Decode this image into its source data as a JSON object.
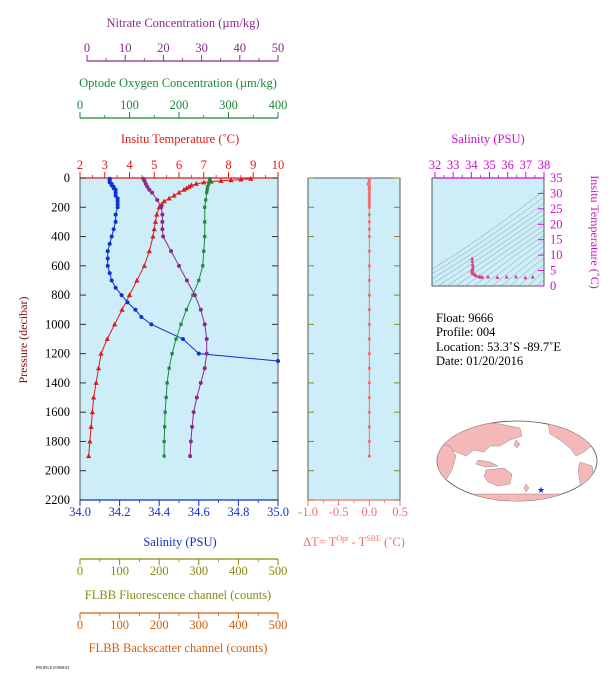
{
  "colors": {
    "nitrate": "#8b2a8b",
    "oxygen": "#1a8a3a",
    "temperature": "#e01a1a",
    "salinity": "#1030d0",
    "fluorescence": "#8a8a10",
    "backscatter": "#d06010",
    "delta_t": "#f07070",
    "ts_axis": "#cc10cc",
    "panel_bg": "#cdeef8",
    "land": "#f4b8b8",
    "ocean": "#ffffff"
  },
  "axes": {
    "nitrate": {
      "label": "Nitrate Concentration (µm/kg)",
      "ticks": [
        "0",
        "10",
        "20",
        "30",
        "40",
        "50"
      ]
    },
    "oxygen": {
      "label": "Optode Oxygen Concentration (µm/kg)",
      "ticks": [
        "0",
        "100",
        "200",
        "300",
        "400"
      ]
    },
    "temperature": {
      "label": "Insitu Temperature (˚C)",
      "ticks": [
        "2",
        "3",
        "4",
        "5",
        "6",
        "7",
        "8",
        "9",
        "10"
      ]
    },
    "pressure": {
      "label": "Pressure (decibar)",
      "ticks": [
        "0",
        "200",
        "400",
        "600",
        "800",
        "1000",
        "1200",
        "1400",
        "1600",
        "1800",
        "2000",
        "2200"
      ]
    },
    "salinity": {
      "label": "Salinity (PSU)",
      "ticks": [
        "34.0",
        "34.2",
        "34.4",
        "34.6",
        "34.8",
        "35.0"
      ]
    },
    "delta_t": {
      "label_main": "ΔT= T",
      "sup1": "Opt",
      "label_mid": " - T",
      "sup2": "SBE",
      "label_end": " (˚C)",
      "ticks": [
        "-1.0",
        "-0.5",
        "0.0",
        "0.5"
      ]
    },
    "fluorescence": {
      "label": "FLBB Fluorescence channel (counts)",
      "ticks": [
        "0",
        "100",
        "200",
        "300",
        "400",
        "500"
      ]
    },
    "backscatter": {
      "label": "FLBB Backscatter channel (counts)",
      "ticks": [
        "0",
        "100",
        "200",
        "300",
        "400",
        "500"
      ]
    },
    "ts_salinity": {
      "label": "Salinity (PSU)",
      "ticks": [
        "32",
        "33",
        "34",
        "35",
        "36",
        "37",
        "38"
      ]
    },
    "ts_temperature": {
      "label": "Insitu Temperature (˚C)",
      "ticks": [
        "0",
        "5",
        "10",
        "15",
        "20",
        "25",
        "30",
        "35"
      ]
    }
  },
  "info": {
    "float": "Float:  9666",
    "profile": "Profile:  004",
    "location": "Location:  53.3˚S  -89.7˚E",
    "date": "Date:  01/20/2016"
  },
  "footer_text": "PROFILE.FORMAT",
  "chart_data": [
    {
      "type": "line",
      "ylabel": "Pressure (decibar)",
      "ylim": [
        0,
        2200
      ],
      "y_inverted": true,
      "series": [
        {
          "name": "Insitu Temperature",
          "x_axis": "temperature",
          "xlim": [
            2,
            10
          ],
          "color": "#e01a1a",
          "marker": "triangle",
          "pressure": [
            5,
            10,
            15,
            20,
            25,
            30,
            40,
            50,
            60,
            70,
            80,
            100,
            120,
            140,
            160,
            180,
            200,
            250,
            300,
            350,
            400,
            500,
            600,
            700,
            800,
            900,
            1000,
            1100,
            1200,
            1300,
            1400,
            1500,
            1600,
            1700,
            1800,
            1900
          ],
          "values": [
            8.9,
            8.5,
            8.1,
            7.7,
            7.3,
            7.0,
            6.7,
            6.5,
            6.4,
            6.3,
            6.2,
            6.0,
            5.8,
            5.6,
            5.4,
            5.3,
            5.2,
            5.1,
            5.05,
            5.0,
            4.95,
            4.8,
            4.6,
            4.3,
            4.0,
            3.7,
            3.4,
            3.1,
            2.85,
            2.75,
            2.65,
            2.55,
            2.5,
            2.45,
            2.4,
            2.35
          ]
        },
        {
          "name": "Salinity",
          "x_axis": "salinity",
          "xlim": [
            34.0,
            35.0
          ],
          "color": "#1030d0",
          "marker": "circle",
          "pressure": [
            5,
            10,
            20,
            30,
            40,
            50,
            60,
            70,
            80,
            100,
            120,
            140,
            160,
            180,
            200,
            250,
            300,
            350,
            400,
            450,
            500,
            550,
            600,
            650,
            700,
            750,
            800,
            850,
            900,
            950,
            1000,
            1100,
            1200,
            1250
          ],
          "values": [
            34.15,
            34.15,
            34.15,
            34.15,
            34.16,
            34.16,
            34.17,
            34.17,
            34.18,
            34.18,
            34.18,
            34.19,
            34.19,
            34.19,
            34.19,
            34.18,
            34.18,
            34.17,
            34.16,
            34.15,
            34.14,
            34.14,
            34.14,
            34.15,
            34.16,
            34.18,
            34.21,
            34.24,
            34.28,
            34.31,
            34.36,
            34.52,
            34.6,
            35.0
          ]
        },
        {
          "name": "Optode Oxygen Concentration",
          "x_axis": "oxygen",
          "xlim": [
            0,
            400
          ],
          "color": "#1a8a3a",
          "marker": "square",
          "pressure": [
            5,
            20,
            40,
            60,
            80,
            100,
            150,
            200,
            300,
            400,
            500,
            600,
            700,
            800,
            900,
            1000,
            1100,
            1200,
            1300,
            1400,
            1500,
            1600,
            1700,
            1800,
            1900
          ],
          "values": [
            262,
            262,
            260,
            258,
            257,
            256,
            254,
            252,
            252,
            252,
            250,
            248,
            240,
            228,
            215,
            204,
            194,
            186,
            180,
            176,
            174,
            172,
            171,
            170,
            170
          ]
        },
        {
          "name": "Nitrate Concentration",
          "x_axis": "nitrate",
          "xlim": [
            0,
            50
          ],
          "color": "#8b2a8b",
          "marker": "circle",
          "pressure": [
            5,
            20,
            40,
            60,
            80,
            100,
            150,
            200,
            250,
            300,
            350,
            400,
            500,
            600,
            700,
            800,
            900,
            1000,
            1100,
            1200,
            1300,
            1400,
            1500,
            1600,
            1700,
            1800,
            1900
          ],
          "values": [
            16,
            16.3,
            16.6,
            17,
            17.5,
            18.2,
            19.5,
            20.5,
            20.8,
            20.8,
            20.8,
            21,
            23,
            25,
            27,
            29,
            30.5,
            31.5,
            32,
            32,
            31.5,
            30.5,
            29.5,
            28.7,
            28.3,
            28.0,
            27.8
          ]
        }
      ]
    },
    {
      "type": "line",
      "xlabel": "ΔT= T(Opt) - T(SBE) (˚C)",
      "xlim": [
        -1.0,
        0.5
      ],
      "ylim": [
        0,
        2200
      ],
      "y_inverted": true,
      "series": [
        {
          "name": "ΔT",
          "color": "#f07070",
          "pressure": [
            5,
            10,
            20,
            30,
            40,
            50,
            60,
            70,
            80,
            100,
            120,
            140,
            160,
            180,
            200,
            250,
            300,
            350,
            400,
            500,
            600,
            700,
            800,
            900,
            1000,
            1100,
            1200,
            1300,
            1400,
            1500,
            1600,
            1700,
            1800,
            1900
          ],
          "values": [
            0.0,
            0.0,
            0.0,
            0.0,
            -0.02,
            0.0,
            0.0,
            0.0,
            0.0,
            0.0,
            0.0,
            0.0,
            0.0,
            0.0,
            0.0,
            0.0,
            0.0,
            0.0,
            0.0,
            0.0,
            0.0,
            0.0,
            0.0,
            0.0,
            0.0,
            0.0,
            0.0,
            0.0,
            0.0,
            0.0,
            0.0,
            0.0,
            0.0,
            0.0
          ]
        }
      ]
    },
    {
      "type": "scatter",
      "title": "Salinity (PSU)",
      "xlim": [
        32,
        38
      ],
      "ylim": [
        0,
        35
      ],
      "grid": false,
      "series": [
        {
          "name": "profile",
          "color": "#e04080",
          "x": [
            34.15,
            34.16,
            34.18,
            34.19,
            34.18,
            34.16,
            34.14,
            34.14,
            34.16,
            34.21,
            34.28,
            34.36,
            34.52,
            34.6,
            34.7,
            35.0,
            35.5,
            36.0,
            36.5,
            37.0,
            37.4
          ],
          "y": [
            8.9,
            8.0,
            7.0,
            6.2,
            5.6,
            5.2,
            5.05,
            4.8,
            4.3,
            4.0,
            3.7,
            3.4,
            3.1,
            2.85,
            2.9,
            3.0,
            2.8,
            2.9,
            3.0,
            2.7,
            2.9
          ]
        }
      ]
    }
  ]
}
